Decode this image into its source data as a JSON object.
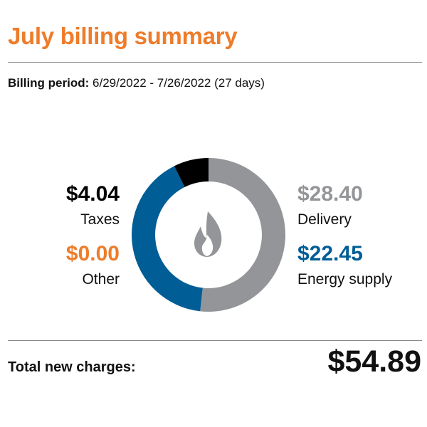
{
  "title": "July billing summary",
  "billing_period": {
    "label": "Billing period:",
    "value": "6/29/2022 - 7/26/2022 (27 days)"
  },
  "total": {
    "label": "Total new charges:",
    "value": "$54.89"
  },
  "colors": {
    "title": "#ee7c2a",
    "taxes": "#000000",
    "other": "#ee7c2a",
    "delivery": "#939598",
    "energy_supply": "#005d96",
    "icon": "#939598"
  },
  "center_icon": "flame-icon",
  "chart_data": {
    "type": "pie",
    "style": "donut",
    "categories": [
      "Delivery",
      "Energy supply",
      "Other",
      "Taxes"
    ],
    "values": [
      28.4,
      22.45,
      0.0,
      4.04
    ],
    "labels": [
      "$28.40",
      "$22.45",
      "$0.00",
      "$4.04"
    ],
    "colors": [
      "#939598",
      "#005d96",
      "#ee7c2a",
      "#000000"
    ]
  }
}
